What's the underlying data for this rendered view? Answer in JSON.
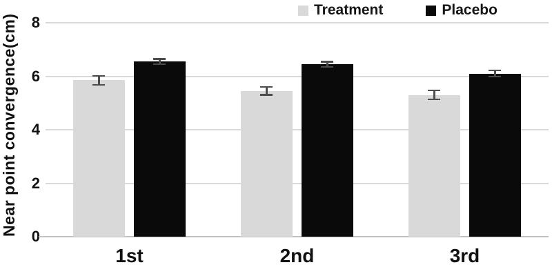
{
  "chart_data": {
    "type": "bar",
    "title": "",
    "categories": [
      "1st",
      "2nd",
      "3rd"
    ],
    "series": [
      {
        "name": "Treatment",
        "color": "#d9d9d9",
        "values": [
          5.85,
          5.45,
          5.3
        ],
        "errors": [
          0.2,
          0.18,
          0.2
        ]
      },
      {
        "name": "Placebo",
        "color": "#0a0a0a",
        "values": [
          6.55,
          6.45,
          6.1
        ],
        "errors": [
          0.13,
          0.13,
          0.15
        ]
      }
    ],
    "xlabel": "",
    "ylabel": "Near point convergence(cm)",
    "ylim": [
      0,
      8
    ],
    "yticks": [
      0,
      2,
      4,
      6,
      8
    ],
    "grid": "horizontal",
    "legend_position": "top-right",
    "error_bar_color": "#4d4d4d",
    "gridline_color": "#d9d9d9",
    "axis_line_color": "#c0c0c0"
  }
}
